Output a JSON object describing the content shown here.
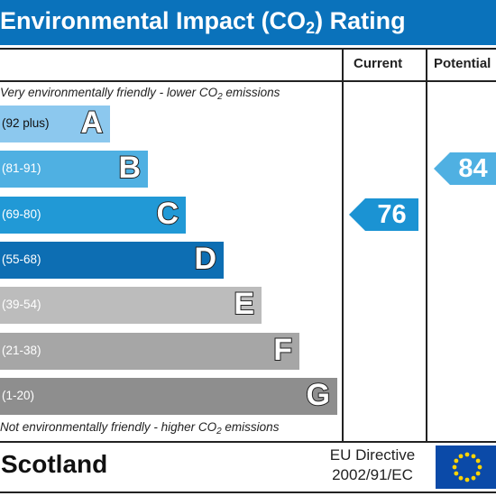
{
  "title": {
    "pre": "Environmental Impact (CO",
    "sub": "2",
    "post": ") Rating"
  },
  "columns": {
    "current": "Current",
    "potential": "Potential"
  },
  "top_note": {
    "pre": "Very environmentally friendly - lower CO",
    "sub": "2",
    "post": " emissions"
  },
  "bottom_note": {
    "pre": "Not environmentally friendly - higher CO",
    "sub": "2",
    "post": " emissions"
  },
  "footer": {
    "country": "Scotland",
    "directive_line1": "EU Directive",
    "directive_line2": "2002/91/EC"
  },
  "flag_icon": "eu-flag-icon",
  "chart_data": {
    "type": "bar",
    "categories": [
      "A",
      "B",
      "C",
      "D",
      "E",
      "F",
      "G"
    ],
    "ranges": [
      "(92 plus)",
      "(81-91)",
      "(69-80)",
      "(55-68)",
      "(39-54)",
      "(21-38)",
      "(1-20)"
    ],
    "colors": [
      "#8cc8ee",
      "#4fb0e2",
      "#2199d6",
      "#0d6eb3",
      "#bcbcbc",
      "#a6a6a6",
      "#8e8e8e"
    ],
    "current": {
      "value": 76,
      "band": "C",
      "color": "#1b93d3"
    },
    "potential": {
      "value": 84,
      "band": "B",
      "color": "#4fb0e2"
    }
  }
}
